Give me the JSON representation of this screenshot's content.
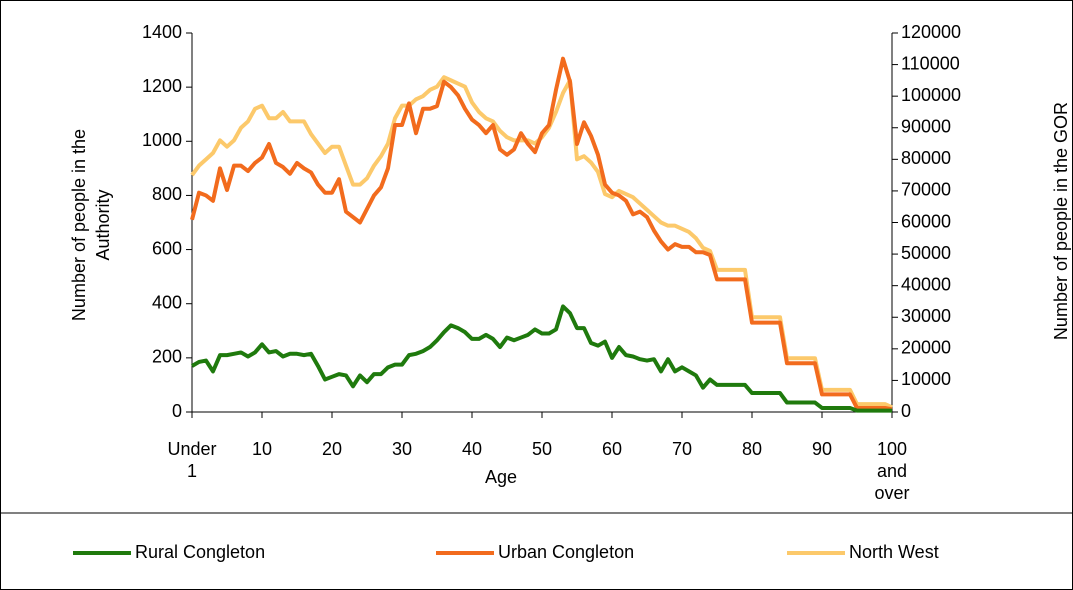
{
  "chart_data": {
    "type": "line",
    "x_label": "Age",
    "y_label": "Number of people in the Authority",
    "y2_label": "Number of people in the GOR",
    "categories": [
      "Under 1",
      null,
      null,
      null,
      null,
      null,
      null,
      null,
      null,
      null,
      "10",
      null,
      null,
      null,
      null,
      null,
      null,
      null,
      null,
      null,
      "20",
      null,
      null,
      null,
      null,
      null,
      null,
      null,
      null,
      null,
      "30",
      null,
      null,
      null,
      null,
      null,
      null,
      null,
      null,
      null,
      "40",
      null,
      null,
      null,
      null,
      null,
      null,
      null,
      null,
      null,
      "50",
      null,
      null,
      null,
      null,
      null,
      null,
      null,
      null,
      null,
      "60",
      null,
      null,
      null,
      null,
      null,
      null,
      null,
      null,
      null,
      "70",
      null,
      null,
      null,
      null,
      null,
      null,
      null,
      null,
      null,
      "80",
      null,
      null,
      null,
      null,
      null,
      null,
      null,
      null,
      null,
      "90",
      null,
      null,
      null,
      null,
      null,
      null,
      null,
      null,
      null,
      "100 and over"
    ],
    "series": [
      {
        "name": "Rural Congleton",
        "color": "#1f7a0d",
        "values": [
          170,
          185,
          190,
          150,
          210,
          210,
          215,
          220,
          205,
          220,
          250,
          220,
          225,
          205,
          215,
          215,
          210,
          215,
          170,
          120,
          130,
          140,
          135,
          95,
          135,
          110,
          140,
          140,
          165,
          175,
          175,
          210,
          215,
          225,
          240,
          265,
          295,
          320,
          310,
          295,
          270,
          270,
          285,
          270,
          240,
          275,
          265,
          275,
          285,
          305,
          290,
          290,
          305,
          390,
          365,
          310,
          310,
          255,
          245,
          260,
          200,
          240,
          210,
          205,
          195,
          190,
          195,
          150,
          195,
          150,
          165,
          150,
          135,
          90,
          120,
          100,
          100,
          100,
          100,
          100,
          70,
          70,
          70,
          70,
          70,
          35,
          35,
          35,
          35,
          35,
          15,
          15,
          15,
          15,
          15,
          5,
          5,
          5,
          5,
          5,
          5
        ]
      },
      {
        "name": "Urban Congleton",
        "color": "#f26b1d",
        "values": [
          710,
          810,
          800,
          780,
          900,
          820,
          910,
          910,
          890,
          920,
          940,
          990,
          920,
          905,
          880,
          920,
          900,
          885,
          840,
          810,
          810,
          860,
          740,
          720,
          700,
          750,
          800,
          830,
          900,
          1060,
          1060,
          1140,
          1030,
          1120,
          1120,
          1130,
          1220,
          1200,
          1170,
          1120,
          1080,
          1060,
          1030,
          1060,
          970,
          950,
          970,
          1030,
          990,
          960,
          1030,
          1060,
          1190,
          1305,
          1220,
          990,
          1070,
          1020,
          950,
          840,
          810,
          800,
          780,
          730,
          740,
          720,
          670,
          630,
          600,
          620,
          610,
          610,
          590,
          590,
          580,
          490,
          490,
          490,
          490,
          490,
          330,
          330,
          330,
          330,
          330,
          180,
          180,
          180,
          180,
          180,
          65,
          65,
          65,
          65,
          65,
          15,
          15,
          15,
          15,
          15,
          10
        ]
      },
      {
        "name": "North West",
        "color": "#fcc96b",
        "axis": "y2",
        "values": [
          75000,
          78000,
          80000,
          82000,
          86000,
          84000,
          86000,
          90000,
          92000,
          96000,
          97000,
          93000,
          93000,
          95000,
          92000,
          92000,
          92000,
          88000,
          85000,
          82000,
          84000,
          84000,
          78000,
          72000,
          72000,
          74000,
          78000,
          81000,
          85000,
          93000,
          97000,
          97000,
          99000,
          100000,
          102000,
          103000,
          106000,
          105000,
          104000,
          103000,
          98000,
          95000,
          93000,
          92000,
          89000,
          87000,
          86000,
          86000,
          86000,
          85000,
          87000,
          90000,
          95000,
          101000,
          105000,
          80000,
          81000,
          79000,
          76000,
          69000,
          68000,
          70000,
          69000,
          68000,
          66000,
          64000,
          62000,
          60000,
          59000,
          59000,
          58000,
          57000,
          55000,
          52000,
          51000,
          45000,
          45000,
          45000,
          45000,
          45000,
          30000,
          30000,
          30000,
          30000,
          30000,
          17000,
          17000,
          17000,
          17000,
          17000,
          7000,
          7000,
          7000,
          7000,
          7000,
          2500,
          2500,
          2500,
          2500,
          2500,
          1500
        ]
      }
    ],
    "ylim": [
      0,
      1400
    ],
    "yticks": [
      0,
      200,
      400,
      600,
      800,
      1000,
      1200,
      1400
    ],
    "y2lim": [
      0,
      120000
    ],
    "y2ticks": [
      0,
      10000,
      20000,
      30000,
      40000,
      50000,
      60000,
      70000,
      80000,
      90000,
      100000,
      110000,
      120000
    ],
    "legend": "bottom"
  }
}
